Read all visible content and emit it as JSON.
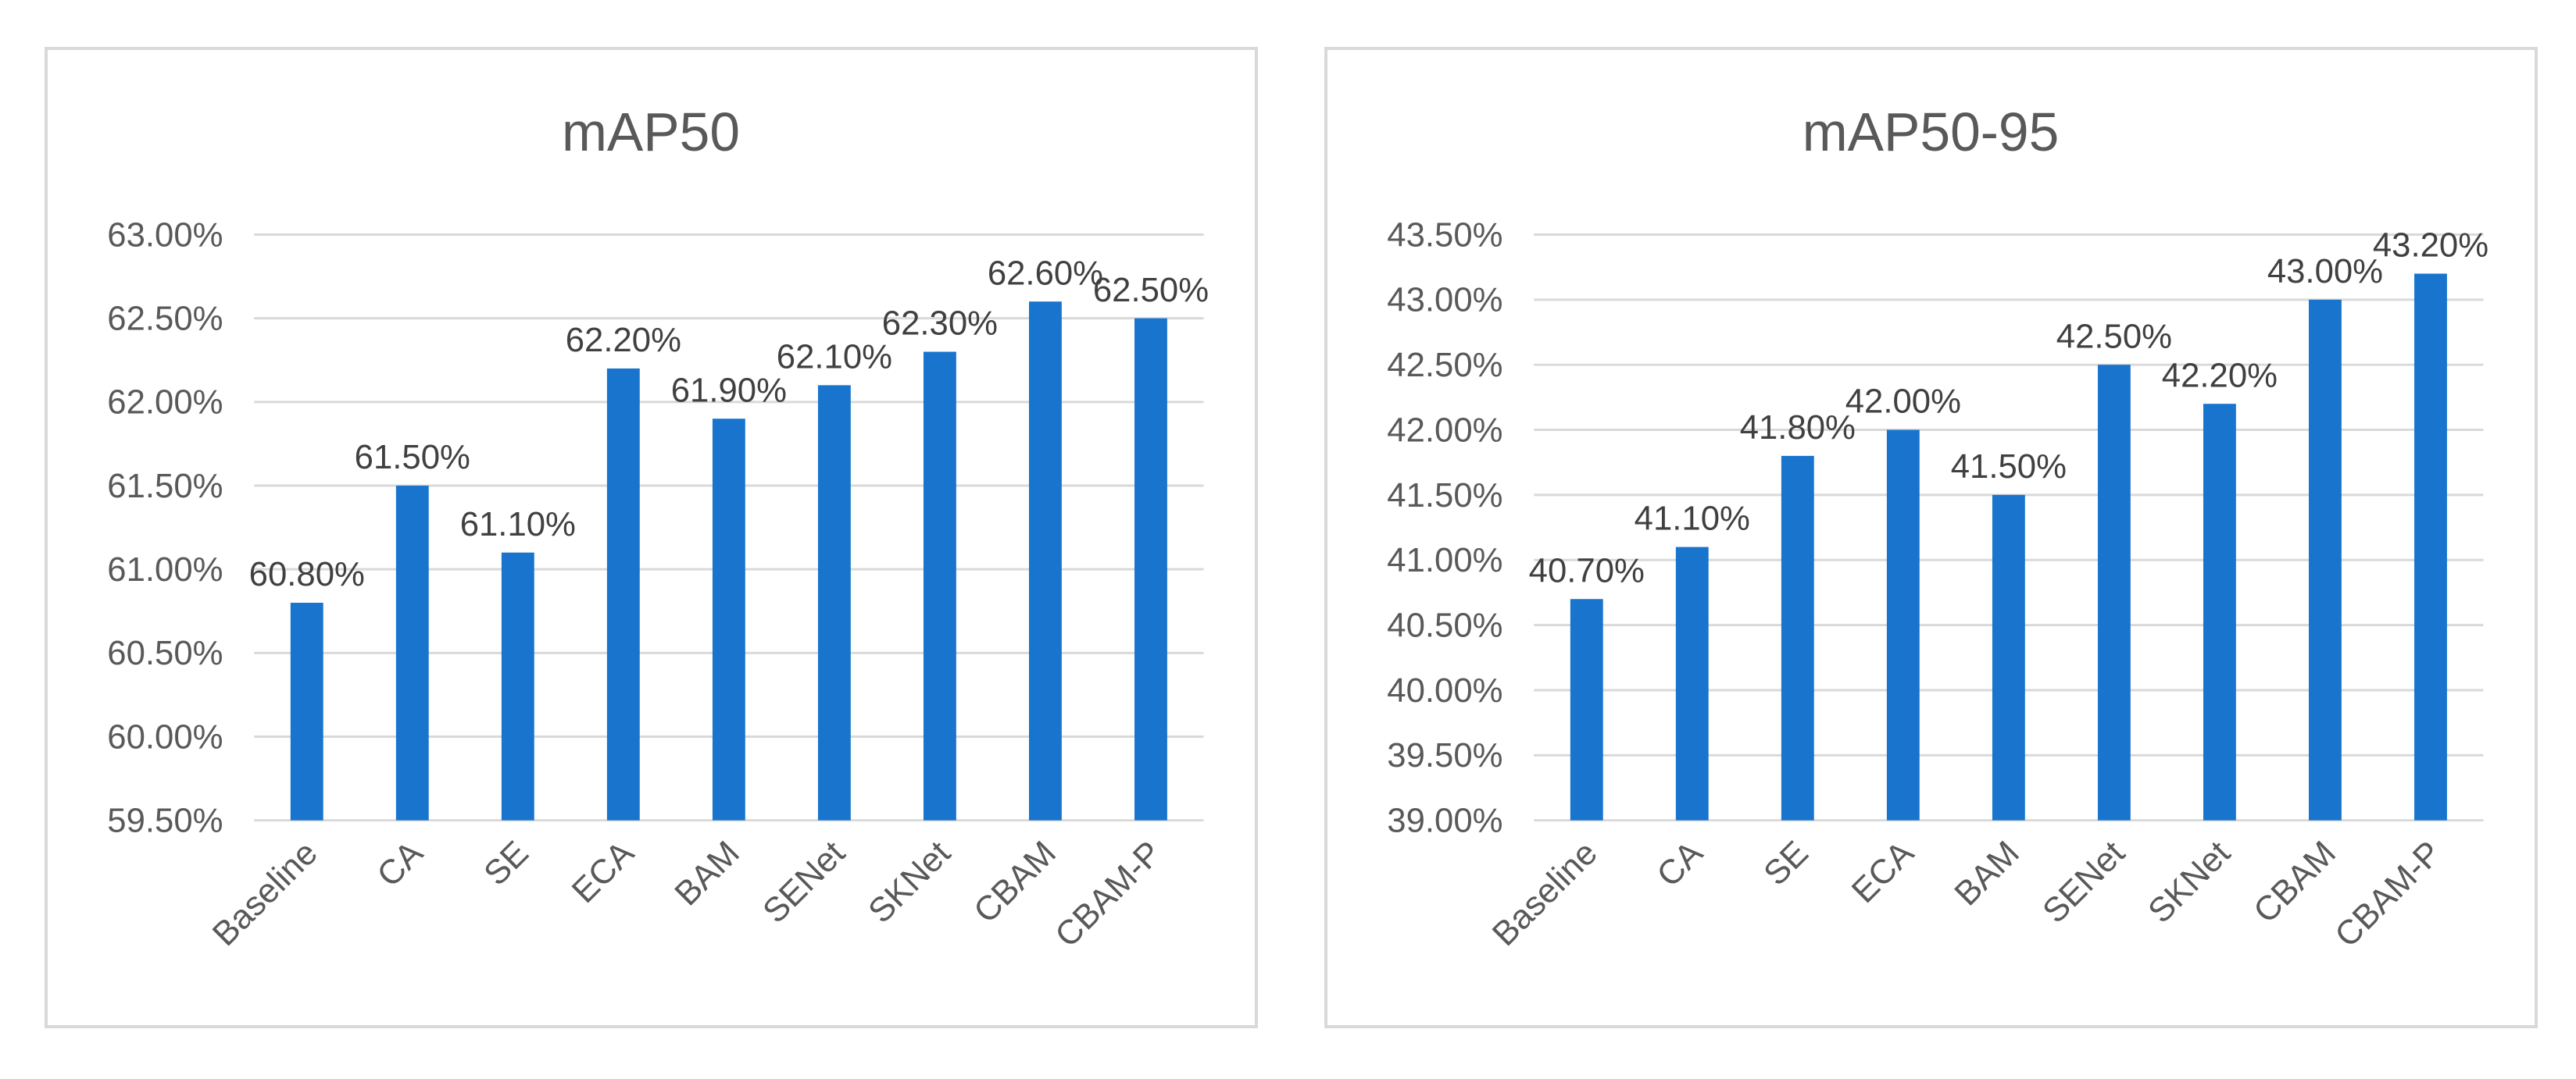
{
  "chart_data": [
    {
      "type": "bar",
      "title": "mAP50",
      "categories": [
        "Baseline",
        "CA",
        "SE",
        "ECA",
        "BAM",
        "SENet",
        "SKNet",
        "CBAM",
        "CBAM-P"
      ],
      "values": [
        60.8,
        61.5,
        61.1,
        62.2,
        61.9,
        62.1,
        62.3,
        62.6,
        62.5
      ],
      "value_labels": [
        "60.80%",
        "61.50%",
        "61.10%",
        "62.20%",
        "61.90%",
        "62.10%",
        "62.30%",
        "62.60%",
        "62.50%"
      ],
      "yticks": [
        59.5,
        60.0,
        60.5,
        61.0,
        61.5,
        62.0,
        62.5,
        63.0
      ],
      "ytick_labels": [
        "59.50%",
        "60.00%",
        "60.50%",
        "61.00%",
        "61.50%",
        "62.00%",
        "62.50%",
        "63.00%"
      ],
      "ylim": [
        59.5,
        63.0
      ],
      "xlabel": "",
      "ylabel": "",
      "grid": true,
      "bar_color": "#1874CD"
    },
    {
      "type": "bar",
      "title": "mAP50-95",
      "categories": [
        "Baseline",
        "CA",
        "SE",
        "ECA",
        "BAM",
        "SENet",
        "SKNet",
        "CBAM",
        "CBAM-P"
      ],
      "values": [
        40.7,
        41.1,
        41.8,
        42.0,
        41.5,
        42.5,
        42.2,
        43.0,
        43.2
      ],
      "value_labels": [
        "40.70%",
        "41.10%",
        "41.80%",
        "42.00%",
        "41.50%",
        "42.50%",
        "42.20%",
        "43.00%",
        "43.20%"
      ],
      "yticks": [
        39.0,
        39.5,
        40.0,
        40.5,
        41.0,
        41.5,
        42.0,
        42.5,
        43.0,
        43.5
      ],
      "ytick_labels": [
        "39.00%",
        "39.50%",
        "40.00%",
        "40.50%",
        "41.00%",
        "41.50%",
        "42.00%",
        "42.50%",
        "43.00%",
        "43.50%"
      ],
      "ylim": [
        39.0,
        43.5
      ],
      "xlabel": "",
      "ylabel": "",
      "grid": true,
      "bar_color": "#1874CD"
    }
  ]
}
